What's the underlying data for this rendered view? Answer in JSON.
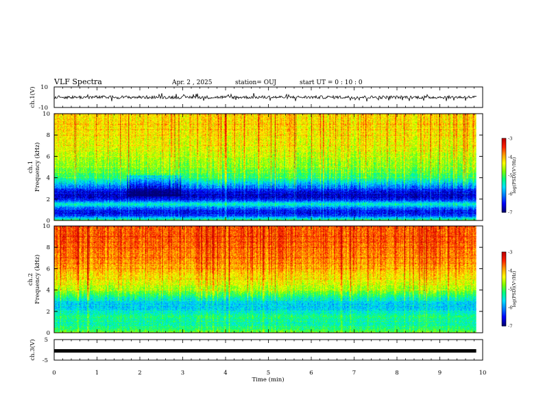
{
  "header": {
    "title": "VLF Spectra",
    "date": "Apr. 2 , 2025",
    "station": "station= OUJ",
    "start": "start  UT =   0 : 10 : 0"
  },
  "colors": {
    "spectrum": [
      "#00007a",
      "#0000ff",
      "#0078ff",
      "#00e0ff",
      "#00ff80",
      "#80ff00",
      "#ffff00",
      "#ffa000",
      "#ff2000",
      "#c00000"
    ],
    "waveform": "#000000"
  },
  "chart_data": [
    {
      "type": "line",
      "panel": "ch1-waveform",
      "ylabel": "ch.1(V)",
      "ylim": [
        -10,
        10
      ],
      "y_ticks": [
        "10",
        "-10"
      ],
      "description_values": {
        "baseline_v": 0,
        "noise_amplitude_v": 1.5,
        "spike_amplitude_v": 4
      }
    },
    {
      "type": "heatmap",
      "panel": "ch1-spectrogram",
      "ylabel_line1": "ch.1",
      "ylabel_line2": "Frequency  (kHz)",
      "ylim": [
        0,
        10
      ],
      "y_ticks": [
        "0",
        "2",
        "4",
        "6",
        "8",
        "10"
      ],
      "colorbar": {
        "label": "log(PSD)(V²/Hz)",
        "range": [
          -7,
          -3
        ],
        "ticks": [
          "-3",
          "-4",
          "-5",
          "-6",
          "-7"
        ]
      },
      "freq_profile_khz": [
        0,
        0.5,
        1,
        1.5,
        2,
        2.5,
        3,
        3.5,
        4,
        5,
        6,
        7,
        8,
        9,
        10
      ],
      "log_psd_profile": [
        -5.2,
        -6.6,
        -6.5,
        -5.4,
        -6.7,
        -6.8,
        -6.3,
        -5.7,
        -5.2,
        -4.8,
        -4.6,
        -4.4,
        -4.3,
        -4.2,
        -4.2
      ]
    },
    {
      "type": "heatmap",
      "panel": "ch2-spectrogram",
      "ylabel_line1": "ch.2",
      "ylabel_line2": "Frequency  (kHz)",
      "ylim": [
        0,
        10
      ],
      "y_ticks": [
        "0",
        "2",
        "4",
        "6",
        "8",
        "10"
      ],
      "colorbar": {
        "label": "log(PSD)(V²/Hz)",
        "range": [
          -7,
          -3
        ],
        "ticks": [
          "-3",
          "-4",
          "-5",
          "-6",
          "-7"
        ]
      },
      "freq_profile_khz": [
        0,
        0.5,
        1,
        1.5,
        2,
        2.5,
        3,
        3.5,
        4,
        5,
        6,
        7,
        8,
        9,
        10
      ],
      "log_psd_profile": [
        -4.9,
        -5.3,
        -5.4,
        -5.2,
        -5.6,
        -5.8,
        -5.6,
        -5.1,
        -4.7,
        -4.3,
        -4.0,
        -3.8,
        -3.7,
        -3.6,
        -3.6
      ]
    },
    {
      "type": "line",
      "panel": "ch3-waveform",
      "ylabel": "ch.3(V)",
      "ylim": [
        -5,
        5
      ],
      "y_ticks": [
        "5",
        "-5"
      ],
      "description_values": {
        "baseline_v": -0.5
      }
    }
  ],
  "x_axis": {
    "label": "Time  (min)",
    "range": [
      0,
      10
    ],
    "ticks": [
      "0",
      "1",
      "2",
      "3",
      "4",
      "5",
      "6",
      "7",
      "8",
      "9",
      "10"
    ],
    "data_end_min": 9.85
  }
}
